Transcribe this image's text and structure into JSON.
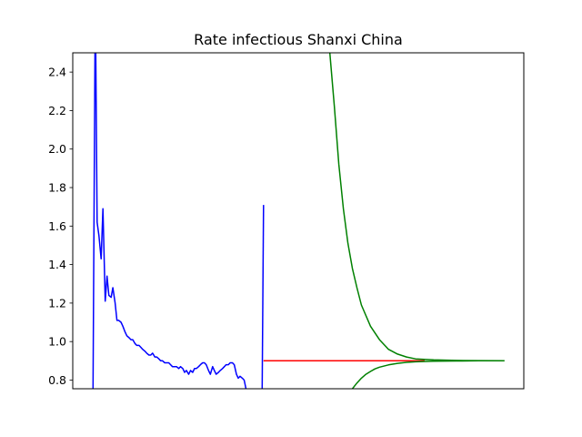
{
  "chart_data": {
    "type": "line",
    "title": "Rate infectious Shanxi China",
    "xlabel": "",
    "ylabel": "",
    "xlim": [
      0,
      100
    ],
    "ylim": [
      0.755,
      2.5
    ],
    "yticks": [
      0.8,
      1.0,
      1.2,
      1.4,
      1.6,
      1.8,
      2.0,
      2.2,
      2.4
    ],
    "ytick_labels": [
      "0.8",
      "1.0",
      "1.2",
      "1.4",
      "1.6",
      "1.8",
      "2.0",
      "2.2",
      "2.4"
    ],
    "x_ticks_shown": false,
    "grid": false,
    "series": [
      {
        "color": "#0000ff",
        "x": [
          4.5,
          5.0,
          5.4,
          5.8,
          6.3,
          6.7,
          7.2,
          7.6,
          8.0,
          8.5,
          8.9,
          9.4,
          9.8,
          10.2,
          10.7,
          11.1,
          11.6,
          12.0,
          12.5,
          12.9,
          13.3,
          13.8,
          14.2,
          14.7,
          15.1,
          15.5,
          16.0,
          16.4,
          16.9,
          17.3,
          17.7,
          18.2,
          18.6,
          19.1,
          19.5,
          19.9,
          20.4,
          20.8,
          21.3,
          21.7,
          22.1,
          22.6,
          23.0,
          23.5,
          23.9,
          24.4,
          24.8,
          25.2,
          25.7,
          26.1,
          26.6,
          27.0,
          27.4,
          27.9,
          28.3,
          28.8,
          29.2,
          29.6,
          30.1,
          30.5,
          31.0,
          31.4,
          31.8,
          32.3,
          32.7,
          33.2,
          33.6,
          34.0,
          34.5,
          34.9,
          35.4,
          35.8,
          36.3,
          36.7,
          37.1,
          37.6,
          38.0,
          38.4
        ],
        "y": [
          0.755,
          2.8,
          1.62,
          1.55,
          1.43,
          1.69,
          1.21,
          1.34,
          1.24,
          1.23,
          1.28,
          1.2,
          1.11,
          1.11,
          1.1,
          1.08,
          1.05,
          1.03,
          1.02,
          1.01,
          1.01,
          0.99,
          0.98,
          0.98,
          0.97,
          0.96,
          0.95,
          0.94,
          0.93,
          0.93,
          0.94,
          0.92,
          0.92,
          0.91,
          0.9,
          0.9,
          0.89,
          0.89,
          0.89,
          0.88,
          0.87,
          0.87,
          0.87,
          0.86,
          0.87,
          0.86,
          0.84,
          0.85,
          0.83,
          0.85,
          0.84,
          0.86,
          0.86,
          0.87,
          0.88,
          0.89,
          0.89,
          0.88,
          0.85,
          0.83,
          0.87,
          0.85,
          0.83,
          0.84,
          0.85,
          0.86,
          0.87,
          0.88,
          0.88,
          0.89,
          0.89,
          0.88,
          0.83,
          0.81,
          0.82,
          0.81,
          0.8,
          0.755
        ]
      },
      {
        "color": "#0000ff",
        "x": [
          42.0,
          42.3
        ],
        "y": [
          0.755,
          1.71
        ]
      },
      {
        "color": "#ff0000",
        "x": [
          42.3,
          78.0
        ],
        "y": [
          0.9,
          0.9
        ]
      },
      {
        "color": "#008000",
        "x": [
          57.0,
          58.0,
          59.0,
          60.0,
          61.0,
          62.0,
          63.0,
          64.0,
          66.0,
          68.0,
          70.0,
          72.0,
          74.0,
          76.0,
          80.0,
          85.0,
          90.0,
          95.7
        ],
        "y": [
          2.5,
          2.22,
          1.92,
          1.69,
          1.51,
          1.38,
          1.28,
          1.19,
          1.08,
          1.01,
          0.96,
          0.935,
          0.92,
          0.91,
          0.905,
          0.902,
          0.901,
          0.9
        ]
      },
      {
        "color": "#008000",
        "x": [
          62.0,
          63.0,
          64.0,
          65.0,
          66.0,
          67.0,
          68.0,
          70.0,
          72.0,
          74.0,
          76.0,
          80.0,
          85.0,
          90.0,
          95.7
        ],
        "y": [
          0.755,
          0.785,
          0.81,
          0.83,
          0.845,
          0.858,
          0.867,
          0.879,
          0.887,
          0.892,
          0.895,
          0.898,
          0.899,
          0.9,
          0.9
        ]
      }
    ]
  }
}
